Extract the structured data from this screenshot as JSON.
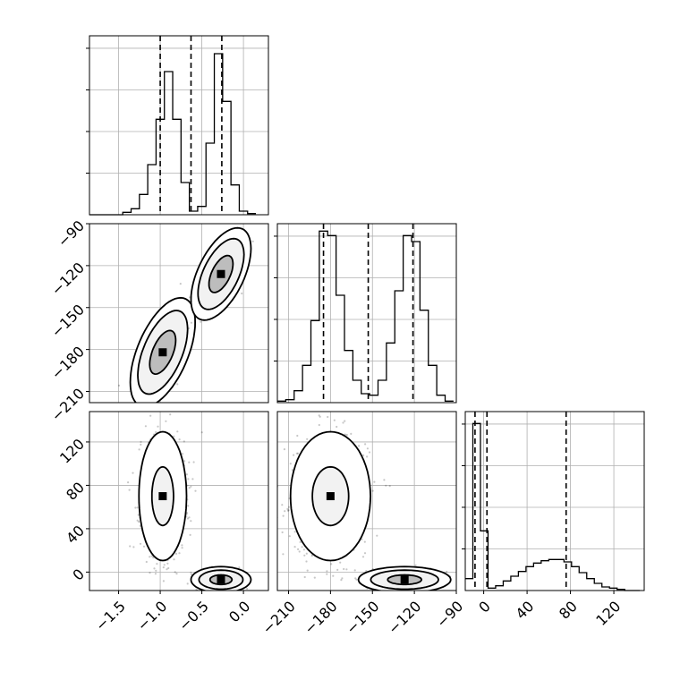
{
  "chart_data": {
    "type": "corner",
    "variables": [
      "p0",
      "p1",
      "p2"
    ],
    "grid": true,
    "axes": {
      "p0": {
        "range": [
          -1.85,
          0.3
        ],
        "ticks": [
          -1.5,
          -1.0,
          -0.5,
          0.0
        ],
        "tick_labels": [
          "−1.5",
          "−1.0",
          "−0.5",
          "0.0"
        ]
      },
      "p1": {
        "range": [
          -218,
          -90
        ],
        "ticks": [
          -210,
          -180,
          -150,
          -120,
          -90
        ],
        "tick_labels": [
          "−210",
          "−180",
          "−150",
          "−120",
          "−90"
        ]
      },
      "p2": {
        "range": [
          -17,
          148
        ],
        "ticks": [
          0,
          40,
          80,
          120
        ],
        "tick_labels": [
          "0",
          "40",
          "80",
          "120"
        ]
      }
    },
    "quantiles": {
      "p0": [
        -1.0,
        -0.63,
        -0.26
      ],
      "p1": [
        -185,
        -153,
        -121
      ],
      "p2": [
        -8,
        3,
        76
      ]
    },
    "histograms": {
      "p0": {
        "edges": [
          -1.85,
          -1.75,
          -1.65,
          -1.55,
          -1.45,
          -1.35,
          -1.25,
          -1.15,
          -1.05,
          -0.95,
          -0.85,
          -0.75,
          -0.65,
          -0.55,
          -0.45,
          -0.35,
          -0.25,
          -0.15,
          -0.05,
          0.05,
          0.15
        ],
        "counts": [
          0,
          0,
          0,
          0,
          2,
          5,
          17,
          42,
          80,
          120,
          80,
          27,
          3,
          7,
          60,
          135,
          95,
          25,
          3,
          1
        ],
        "ymax": 150
      },
      "p1": {
        "edges": [
          -218,
          -212,
          -206,
          -200,
          -194,
          -188,
          -182,
          -176,
          -170,
          -164,
          -158,
          -152,
          -146,
          -140,
          -134,
          -128,
          -122,
          -116,
          -110,
          -104,
          -98,
          -92
        ],
        "counts": [
          1,
          2,
          8,
          25,
          55,
          115,
          112,
          72,
          35,
          15,
          6,
          5,
          15,
          40,
          75,
          112,
          108,
          62,
          25,
          5,
          1
        ],
        "ymax": 120
      },
      "p2": {
        "edges": [
          -17,
          -10,
          -3,
          4,
          11,
          18,
          25,
          32,
          39,
          46,
          53,
          60,
          67,
          74,
          81,
          88,
          95,
          102,
          109,
          116,
          123,
          130,
          137,
          144
        ],
        "counts": [
          10,
          140,
          50,
          2,
          4,
          8,
          12,
          16,
          20,
          23,
          25,
          26,
          26,
          24,
          20,
          15,
          10,
          6,
          3,
          2,
          1,
          0,
          0
        ],
        "ymax": 150
      }
    },
    "scatter_2d": [
      {
        "x": "p0",
        "y": "p1",
        "modes": [
          {
            "center": [
              -0.97,
              -182
            ],
            "sd": [
              0.13,
              13
            ],
            "rho": 0.55,
            "levels": [
              1.2,
              2.3,
              3.0
            ]
          },
          {
            "center": [
              -0.27,
              -126
            ],
            "sd": [
              0.12,
              11
            ],
            "rho": 0.55,
            "levels": [
              1.2,
              2.3,
              3.0
            ]
          }
        ]
      },
      {
        "x": "p0",
        "y": "p2",
        "modes": [
          {
            "center": [
              -0.97,
              70
            ],
            "sd": [
              0.13,
              27
            ],
            "rho": 0.0,
            "levels": [
              1.0,
              2.2
            ]
          },
          {
            "center": [
              -0.27,
              -7
            ],
            "sd": [
              0.12,
              4
            ],
            "rho": 0.0,
            "levels": [
              1.1,
              2.2,
              3.0
            ]
          }
        ]
      },
      {
        "x": "p1",
        "y": "p2",
        "modes": [
          {
            "center": [
              -180,
              70
            ],
            "sd": [
              13,
              27
            ],
            "rho": 0.0,
            "levels": [
              1.0,
              2.2
            ]
          },
          {
            "center": [
              -127,
              -7
            ],
            "sd": [
              11,
              4
            ],
            "rho": 0.0,
            "levels": [
              1.1,
              2.2,
              3.0
            ]
          }
        ]
      }
    ]
  }
}
